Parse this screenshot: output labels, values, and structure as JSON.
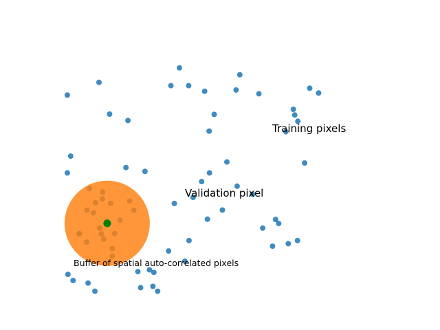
{
  "chart_data": {
    "type": "scatter",
    "axes_visible": false,
    "xlim": [
      0,
      10
    ],
    "ylim": [
      0,
      10
    ],
    "colors": {
      "training": "#1f77b4",
      "buffer": "#ff7f0e",
      "validation": "#008000"
    },
    "series": [
      {
        "points": [
          [
            0.36,
            7.83
          ],
          [
            0.46,
            5.43
          ],
          [
            0.36,
            4.77
          ],
          [
            1.29,
            8.33
          ],
          [
            1.6,
            7.08
          ],
          [
            2.14,
            6.83
          ],
          [
            2.08,
            4.98
          ],
          [
            2.64,
            4.83
          ],
          [
            3.65,
            8.9
          ],
          [
            3.4,
            8.2
          ],
          [
            3.92,
            8.2
          ],
          [
            4.39,
            7.98
          ],
          [
            4.52,
            6.41
          ],
          [
            4.67,
            7.07
          ],
          [
            4.53,
            4.77
          ],
          [
            5.42,
            8.63
          ],
          [
            5.31,
            8.03
          ],
          [
            5.98,
            7.88
          ],
          [
            7.03,
            7.05
          ],
          [
            7.12,
            6.8
          ],
          [
            6.99,
            7.27
          ],
          [
            7.47,
            8.1
          ],
          [
            7.73,
            7.91
          ],
          [
            6.77,
            6.39
          ],
          [
            7.32,
            5.16
          ],
          [
            6.09,
            2.6
          ],
          [
            6.47,
            2.94
          ],
          [
            6.56,
            2.78
          ],
          [
            6.38,
            1.89
          ],
          [
            6.84,
            1.99
          ],
          [
            7.11,
            2.11
          ],
          [
            4.47,
            2.95
          ],
          [
            3.93,
            2.11
          ],
          [
            3.33,
            1.7
          ],
          [
            3.81,
            1.3
          ],
          [
            2.77,
            0.96
          ],
          [
            2.43,
            0.89
          ],
          [
            2.9,
            0.86
          ],
          [
            2.51,
            0.26
          ],
          [
            2.87,
            0.31
          ],
          [
            3.01,
            0.12
          ],
          [
            0.97,
            0.44
          ],
          [
            0.53,
            0.54
          ],
          [
            1.17,
            0.12
          ],
          [
            0.38,
            0.78
          ],
          [
            2.19,
            3.67
          ],
          [
            1.63,
            3.57
          ],
          [
            1.01,
            4.15
          ],
          [
            3.5,
            3.57
          ],
          [
            4.3,
            4.43
          ],
          [
            5.04,
            5.2
          ],
          [
            5.34,
            4.25
          ],
          [
            5.79,
            3.93
          ],
          [
            4.05,
            3.81
          ],
          [
            4.91,
            3.31
          ],
          [
            1.4,
            4.02
          ],
          [
            1.19,
            3.6
          ],
          [
            1.91,
            2.91
          ],
          [
            0.71,
            2.38
          ],
          [
            1.31,
            2.6
          ],
          [
            1.75,
            2.39
          ],
          [
            0.93,
            2.05
          ],
          [
            1.43,
            2.17
          ],
          [
            0.71,
            2.38
          ],
          [
            1.36,
            2.37
          ],
          [
            2.31,
            3.3
          ],
          [
            0.94,
            3.3
          ],
          [
            1.68,
            1.8
          ],
          [
            1.68,
            1.5
          ],
          [
            1.39,
            3.75
          ],
          [
            1.13,
            3.2
          ]
        ]
      },
      {
        "points": [
          [
            1.53,
            2.79
          ]
        ]
      },
      {
        "points": [
          [
            1.53,
            2.79
          ]
        ]
      }
    ],
    "annotations": [
      {
        "text": "Training pixels"
      },
      {
        "text": "Validation pixel"
      },
      {
        "text": "Buffer of spatial auto-correlated pixels"
      }
    ]
  }
}
